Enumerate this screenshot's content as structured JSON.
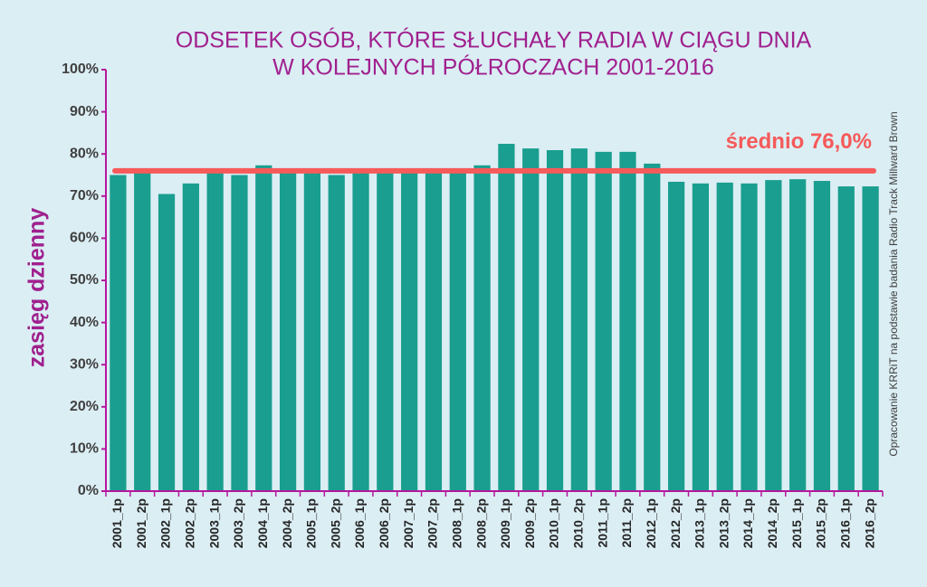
{
  "chart_data": {
    "type": "bar",
    "title_lines": [
      "ODSETEK OSÓB, KTÓRE SŁUCHAŁY RADIA W CIĄGU DNIA",
      "W KOLEJNYCH PÓŁROCZACH 2001-2016"
    ],
    "y_label": "zasięg dzienny",
    "source": "Opracowanie  KRRiT  na  podstawie  badania  Radio  Track Millward Brown",
    "categories": [
      "2001_1p",
      "2001_2p",
      "2002_1p",
      "2002_2p",
      "2003_1p",
      "2003_2p",
      "2004_1p",
      "2004_2p",
      "2005_1p",
      "2005_2p",
      "2006_1p",
      "2006_2p",
      "2007_1p",
      "2007_2p",
      "2008_1p",
      "2008_2p",
      "2009_1p",
      "2009_2p",
      "2010_1p",
      "2010_2p",
      "2011_1p",
      "2011_2p",
      "2012_1p",
      "2012_2p",
      "2013_1p",
      "2013_2p",
      "2014_1p",
      "2014_2p",
      "2015_1p",
      "2015_2p",
      "2016_1p",
      "2016_2p"
    ],
    "values": [
      75,
      76,
      70.5,
      73,
      76,
      75,
      77.3,
      76,
      76,
      75,
      76,
      76,
      76,
      76,
      76,
      77.3,
      82.4,
      81.3,
      80.9,
      81.3,
      80.5,
      80.5,
      77.7,
      73.4,
      73,
      73.2,
      73,
      73.8,
      74,
      73.6,
      72.3,
      72.3
    ],
    "color": "#1a9e8f",
    "average": {
      "value": 76,
      "label": "średnio 76,0%",
      "color": "#f65a5a"
    },
    "ylim": [
      0,
      100
    ],
    "yticks": [
      {
        "value": 0,
        "label": "0%"
      },
      {
        "value": 10,
        "label": "10%"
      },
      {
        "value": 20,
        "label": "20%"
      },
      {
        "value": 30,
        "label": "30%"
      },
      {
        "value": 40,
        "label": "40%"
      },
      {
        "value": 50,
        "label": "50%"
      },
      {
        "value": 60,
        "label": "60%"
      },
      {
        "value": 70,
        "label": "70%"
      },
      {
        "value": 80,
        "label": "80%"
      },
      {
        "value": 90,
        "label": "90%"
      },
      {
        "value": 100,
        "label": "100%"
      }
    ],
    "grid": false
  }
}
